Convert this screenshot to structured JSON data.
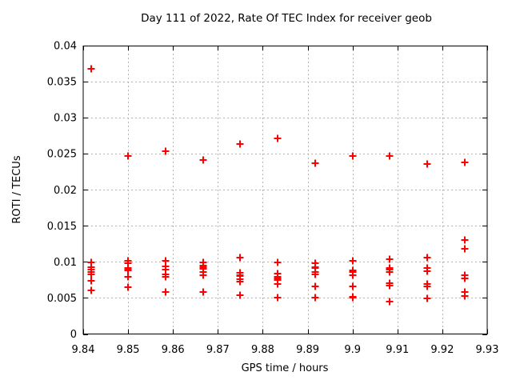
{
  "window": {
    "background": "#ffffff"
  },
  "chart_data": {
    "type": "scatter",
    "title": "Day 111 of 2022, Rate Of TEC Index for receiver geob",
    "xlabel": "GPS time / hours",
    "ylabel": "ROTI / TECUs",
    "xlim": [
      9.84,
      9.93
    ],
    "ylim": [
      0,
      0.04
    ],
    "xticks": [
      9.84,
      9.85,
      9.86,
      9.87,
      9.88,
      9.89,
      9.9,
      9.91,
      9.92,
      9.93
    ],
    "xtick_labels": [
      "9.84",
      "9.85",
      "9.86",
      "9.87",
      "9.88",
      "9.89",
      "9.9",
      "9.91",
      "9.92",
      "9.93"
    ],
    "yticks": [
      0,
      0.005,
      0.01,
      0.015,
      0.02,
      0.025,
      0.03,
      0.035,
      0.04
    ],
    "ytick_labels": [
      "0",
      "0.005",
      "0.01",
      "0.015",
      "0.02",
      "0.025",
      "0.03",
      "0.035",
      "0.04"
    ],
    "grid": true,
    "legend": "none",
    "marker": "plus",
    "marker_color": "#ff0000",
    "grid_color": "#b3b3b3",
    "axis_color": "#000000",
    "series": [
      {
        "name": "ROTI",
        "points": [
          [
            9.8417,
            0.0368
          ],
          [
            9.8417,
            0.0099
          ],
          [
            9.8417,
            0.0093
          ],
          [
            9.8417,
            0.0089
          ],
          [
            9.8417,
            0.0086
          ],
          [
            9.8417,
            0.0083
          ],
          [
            9.8417,
            0.0074
          ],
          [
            9.8417,
            0.0061
          ],
          [
            9.85,
            0.0247
          ],
          [
            9.85,
            0.0102
          ],
          [
            9.85,
            0.0098
          ],
          [
            9.85,
            0.0092
          ],
          [
            9.85,
            0.009
          ],
          [
            9.85,
            0.0088
          ],
          [
            9.85,
            0.0079
          ],
          [
            9.85,
            0.0065
          ],
          [
            9.8583,
            0.0253
          ],
          [
            9.8583,
            0.0102
          ],
          [
            9.8583,
            0.0094
          ],
          [
            9.8583,
            0.0089
          ],
          [
            9.8583,
            0.0083
          ],
          [
            9.8583,
            0.0079
          ],
          [
            9.8583,
            0.0058
          ],
          [
            9.8667,
            0.0241
          ],
          [
            9.8667,
            0.0099
          ],
          [
            9.8667,
            0.0095
          ],
          [
            9.8667,
            0.0093
          ],
          [
            9.8667,
            0.009
          ],
          [
            9.8667,
            0.0086
          ],
          [
            9.8667,
            0.0082
          ],
          [
            9.8667,
            0.0058
          ],
          [
            9.875,
            0.0264
          ],
          [
            9.875,
            0.0106
          ],
          [
            9.875,
            0.0085
          ],
          [
            9.875,
            0.0082
          ],
          [
            9.875,
            0.008
          ],
          [
            9.875,
            0.0076
          ],
          [
            9.875,
            0.0073
          ],
          [
            9.875,
            0.0054
          ],
          [
            9.8833,
            0.0271
          ],
          [
            9.8833,
            0.0099
          ],
          [
            9.8833,
            0.0084
          ],
          [
            9.8833,
            0.0079
          ],
          [
            9.8833,
            0.0077
          ],
          [
            9.8833,
            0.0075
          ],
          [
            9.8833,
            0.0069
          ],
          [
            9.8833,
            0.0051
          ],
          [
            9.8917,
            0.0237
          ],
          [
            9.8917,
            0.0098
          ],
          [
            9.8917,
            0.0093
          ],
          [
            9.8917,
            0.0091
          ],
          [
            9.8917,
            0.0086
          ],
          [
            9.8917,
            0.0083
          ],
          [
            9.8917,
            0.0066
          ],
          [
            9.8917,
            0.005
          ],
          [
            9.9,
            0.0247
          ],
          [
            9.9,
            0.0101
          ],
          [
            9.9,
            0.0088
          ],
          [
            9.9,
            0.0086
          ],
          [
            9.9,
            0.0082
          ],
          [
            9.9,
            0.0066
          ],
          [
            9.9,
            0.0052
          ],
          [
            9.9,
            0.005
          ],
          [
            9.9083,
            0.0247
          ],
          [
            9.9083,
            0.0104
          ],
          [
            9.9083,
            0.0091
          ],
          [
            9.9083,
            0.0089
          ],
          [
            9.9083,
            0.0086
          ],
          [
            9.9083,
            0.007
          ],
          [
            9.9083,
            0.0067
          ],
          [
            9.9083,
            0.0045
          ],
          [
            9.9167,
            0.0236
          ],
          [
            9.9167,
            0.0106
          ],
          [
            9.9167,
            0.0091
          ],
          [
            9.9167,
            0.0087
          ],
          [
            9.9167,
            0.0069
          ],
          [
            9.9167,
            0.0066
          ],
          [
            9.9167,
            0.0049
          ],
          [
            9.925,
            0.0238
          ],
          [
            9.925,
            0.013
          ],
          [
            9.925,
            0.0118
          ],
          [
            9.925,
            0.0082
          ],
          [
            9.925,
            0.0077
          ],
          [
            9.925,
            0.0058
          ],
          [
            9.925,
            0.0053
          ]
        ]
      }
    ]
  }
}
